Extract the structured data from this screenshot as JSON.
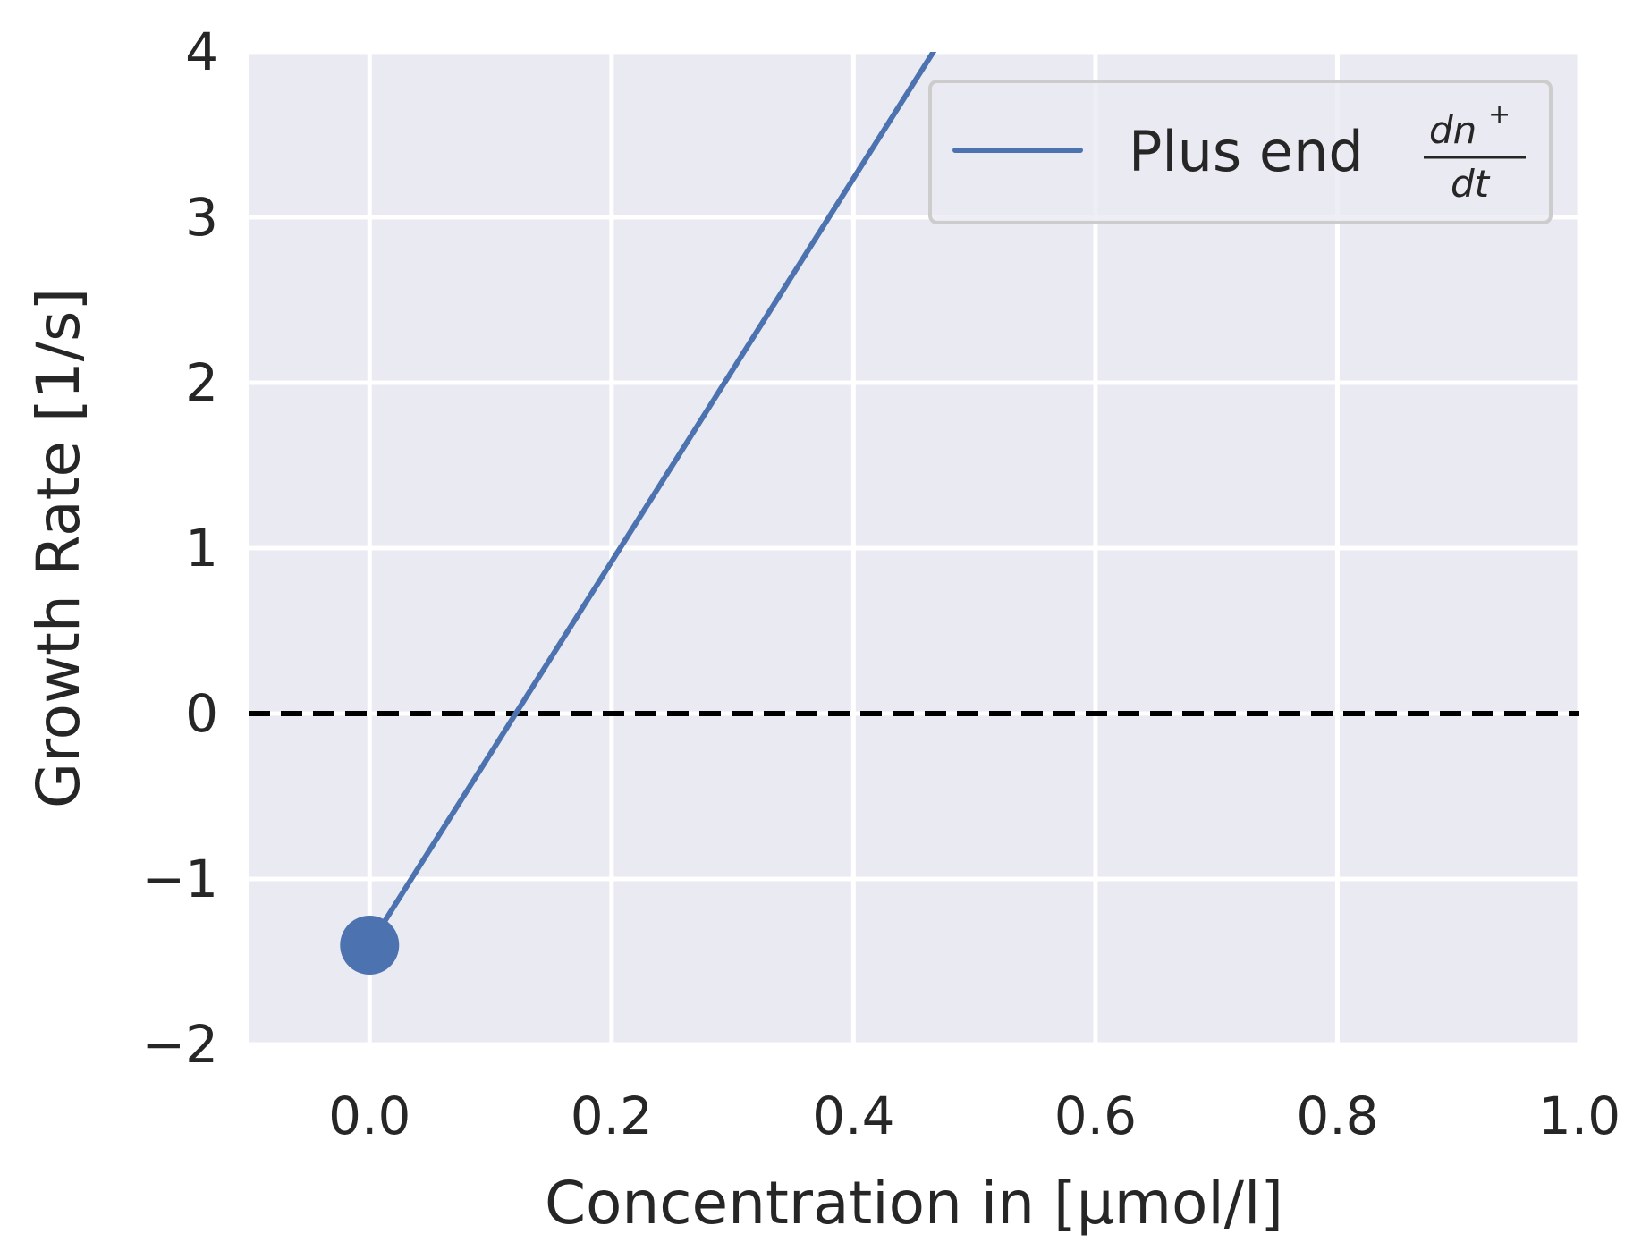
{
  "chart_data": {
    "type": "line",
    "title": "",
    "xlabel": "Concentration in [μmol/l]",
    "ylabel": "Growth Rate [1/s]",
    "xlim": [
      -0.1,
      1.0
    ],
    "ylim": [
      -2,
      4
    ],
    "xticks": [
      0.0,
      0.2,
      0.4,
      0.6,
      0.8,
      1.0
    ],
    "xtick_labels": [
      "0.0",
      "0.2",
      "0.4",
      "0.6",
      "0.8",
      "1.0"
    ],
    "yticks": [
      -2,
      -1,
      0,
      1,
      2,
      3,
      4
    ],
    "ytick_labels": [
      "−2",
      "−1",
      "0",
      "1",
      "2",
      "3",
      "4"
    ],
    "grid": true,
    "legend_position": "top-right",
    "series": [
      {
        "name": "Plus end",
        "legend_math": {
          "numerator": "dn",
          "superscript": "+",
          "denominator": "dt"
        },
        "color": "#4c72b0",
        "x": [
          0.0,
          0.466
        ],
        "y": [
          -1.4,
          4.0
        ],
        "marker_at_start": true
      }
    ],
    "reference_lines": [
      {
        "orientation": "horizontal",
        "y": 0,
        "style": "dashed",
        "color": "#000000"
      }
    ],
    "colors": {
      "plot_background": "#eaeaf2",
      "grid": "#ffffff",
      "line": "#4c72b0",
      "reference": "#000000",
      "text": "#262626"
    }
  }
}
